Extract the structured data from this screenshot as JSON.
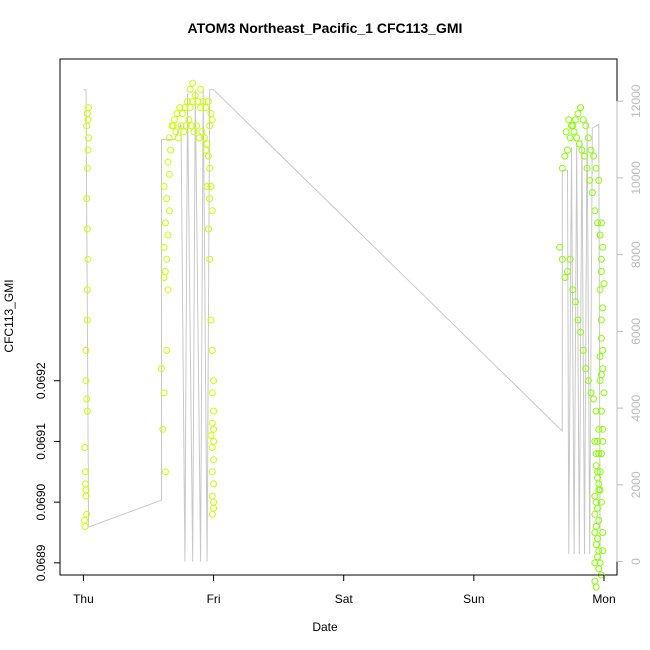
{
  "chart_data": {
    "type": "scatter",
    "title": "ATOM3 Northeast_Pacific_1 CFC113_GMI",
    "xlabel": "Date",
    "ylabel": "CFC113_GMI",
    "x_tick_labels": [
      "Thu",
      "Fri",
      "Sat",
      "Sun",
      "Mon"
    ],
    "x_ticks": [
      0,
      1,
      2,
      3,
      4
    ],
    "xlim": [
      -0.18,
      4.1
    ],
    "ylim": [
      0.06888,
      0.06973
    ],
    "y_ticks": [
      0.0689,
      0.069,
      0.0691,
      0.0692
    ],
    "y_tick_labels": [
      "0.0689",
      "0.0690",
      "0.0691",
      "0.0692"
    ],
    "y2_ticks": [
      0,
      2000,
      4000,
      6000,
      8000,
      10000,
      12000
    ],
    "y2_tick_labels": [
      "0",
      "2000",
      "4000",
      "6000",
      "8000",
      "10000",
      "12000"
    ],
    "y2lim": [
      -350,
      13100
    ],
    "grid": false,
    "legend": "none",
    "colors": {
      "points_early": "#ccff00",
      "points_late": "#88ff00",
      "altitude_line": "#c8c8c8",
      "axis": "#000000",
      "secondary_axis": "#bbbbbb"
    },
    "series": [
      {
        "kind": "points",
        "values": [
          [
            0.01,
            0.06909
          ],
          [
            0.015,
            0.06905
          ],
          [
            0.02,
            0.06902
          ],
          [
            0.008,
            0.06897
          ],
          [
            0.012,
            0.06896
          ],
          [
            0.025,
            0.06898
          ],
          [
            0.02,
            0.06901
          ],
          [
            0.015,
            0.06903
          ],
          [
            0.02,
            0.06925
          ],
          [
            0.02,
            0.0692
          ],
          [
            0.025,
            0.06917
          ],
          [
            0.03,
            0.06915
          ],
          [
            0.03,
            0.0693
          ],
          [
            0.03,
            0.06935
          ],
          [
            0.035,
            0.0694
          ],
          [
            0.03,
            0.06945
          ],
          [
            0.025,
            0.0695
          ],
          [
            0.03,
            0.06955
          ],
          [
            0.035,
            0.06958
          ],
          [
            0.04,
            0.0696
          ],
          [
            0.025,
            0.06962
          ],
          [
            0.035,
            0.06963
          ],
          [
            0.03,
            0.06964
          ],
          [
            0.038,
            0.06965
          ],
          [
            0.6,
            0.06922
          ],
          [
            0.62,
            0.06918
          ],
          [
            0.61,
            0.06912
          ],
          [
            0.63,
            0.06905
          ],
          [
            0.64,
            0.06925
          ],
          [
            0.65,
            0.06935
          ],
          [
            0.62,
            0.06937
          ],
          [
            0.63,
            0.06938
          ],
          [
            0.64,
            0.0694
          ],
          [
            0.62,
            0.06942
          ],
          [
            0.65,
            0.06944
          ],
          [
            0.63,
            0.06946
          ],
          [
            0.66,
            0.06948
          ],
          [
            0.64,
            0.0695
          ],
          [
            0.62,
            0.06952
          ],
          [
            0.66,
            0.06954
          ],
          [
            0.65,
            0.06956
          ],
          [
            0.67,
            0.06958
          ],
          [
            0.66,
            0.0696
          ],
          [
            0.68,
            0.06962
          ],
          [
            0.7,
            0.06963
          ],
          [
            0.72,
            0.06964
          ],
          [
            0.74,
            0.06965
          ],
          [
            0.76,
            0.06964
          ],
          [
            0.78,
            0.06965
          ],
          [
            0.8,
            0.06966
          ],
          [
            0.82,
            0.06965
          ],
          [
            0.84,
            0.06966
          ],
          [
            0.86,
            0.06967
          ],
          [
            0.88,
            0.06966
          ],
          [
            0.9,
            0.06965
          ],
          [
            0.92,
            0.06966
          ],
          [
            0.94,
            0.06965
          ],
          [
            0.96,
            0.06966
          ],
          [
            0.98,
            0.06964
          ],
          [
            0.69,
            0.06962
          ],
          [
            0.71,
            0.06961
          ],
          [
            0.73,
            0.0696
          ],
          [
            0.75,
            0.06962
          ],
          [
            0.77,
            0.06961
          ],
          [
            0.79,
            0.06962
          ],
          [
            0.81,
            0.06963
          ],
          [
            0.83,
            0.06962
          ],
          [
            0.85,
            0.06961
          ],
          [
            0.87,
            0.06962
          ],
          [
            0.89,
            0.0696
          ],
          [
            0.91,
            0.06961
          ],
          [
            0.93,
            0.0696
          ],
          [
            0.95,
            0.06959
          ],
          [
            0.97,
            0.06962
          ],
          [
            0.99,
            0.06963
          ],
          [
            0.82,
            0.06968
          ],
          [
            0.84,
            0.06969
          ],
          [
            0.9,
            0.06968
          ],
          [
            0.97,
            0.06955
          ],
          [
            0.94,
            0.06958
          ],
          [
            0.96,
            0.06957
          ],
          [
            0.98,
            0.06952
          ],
          [
            0.99,
            0.06948
          ],
          [
            0.96,
            0.06945
          ],
          [
            0.97,
            0.0694
          ],
          [
            0.98,
            0.0693
          ],
          [
            0.99,
            0.06925
          ],
          [
            1.0,
            0.0692
          ],
          [
            0.99,
            0.06918
          ],
          [
            1.0,
            0.06915
          ],
          [
            0.99,
            0.06913
          ],
          [
            1.0,
            0.06912
          ],
          [
            0.98,
            0.06911
          ],
          [
            1.0,
            0.0691
          ],
          [
            0.99,
            0.06909
          ],
          [
            1.0,
            0.06907
          ],
          [
            0.99,
            0.06905
          ],
          [
            1.0,
            0.06903
          ],
          [
            0.99,
            0.06901
          ],
          [
            1.0,
            0.069
          ],
          [
            1.0,
            0.06899
          ],
          [
            0.99,
            0.06898
          ],
          [
            0.97,
            0.0695
          ],
          [
            0.95,
            0.06952
          ]
        ]
      },
      {
        "kind": "points",
        "values": [
          [
            3.66,
            0.06942
          ],
          [
            3.68,
            0.0694
          ],
          [
            3.7,
            0.06937
          ],
          [
            3.72,
            0.06938
          ],
          [
            3.74,
            0.0694
          ],
          [
            3.76,
            0.06935
          ],
          [
            3.78,
            0.06933
          ],
          [
            3.8,
            0.0693
          ],
          [
            3.82,
            0.06928
          ],
          [
            3.84,
            0.06925
          ],
          [
            3.86,
            0.06922
          ],
          [
            3.88,
            0.0692
          ],
          [
            3.9,
            0.06918
          ],
          [
            3.92,
            0.06917
          ],
          [
            3.94,
            0.06915
          ],
          [
            3.96,
            0.06912
          ],
          [
            3.93,
            0.0691
          ],
          [
            3.94,
            0.06908
          ],
          [
            3.95,
            0.06905
          ],
          [
            3.96,
            0.06903
          ],
          [
            3.93,
            0.06901
          ],
          [
            3.94,
            0.069
          ],
          [
            3.95,
            0.06899
          ],
          [
            3.96,
            0.06897
          ],
          [
            3.93,
            0.06895
          ],
          [
            3.94,
            0.06893
          ],
          [
            3.95,
            0.06891
          ],
          [
            3.96,
            0.06889
          ],
          [
            3.93,
            0.06887
          ],
          [
            3.94,
            0.06886
          ],
          [
            3.95,
            0.0691
          ],
          [
            3.96,
            0.06908
          ],
          [
            3.94,
            0.06906
          ],
          [
            3.95,
            0.06904
          ],
          [
            3.96,
            0.06902
          ],
          [
            3.93,
            0.06898
          ],
          [
            3.94,
            0.06896
          ],
          [
            3.95,
            0.06894
          ],
          [
            3.96,
            0.06892
          ],
          [
            3.93,
            0.0689
          ],
          [
            3.68,
            0.06955
          ],
          [
            3.7,
            0.06957
          ],
          [
            3.72,
            0.06958
          ],
          [
            3.74,
            0.0696
          ],
          [
            3.76,
            0.06962
          ],
          [
            3.78,
            0.06963
          ],
          [
            3.8,
            0.06964
          ],
          [
            3.82,
            0.06965
          ],
          [
            3.84,
            0.06963
          ],
          [
            3.86,
            0.06962
          ],
          [
            3.88,
            0.0696
          ],
          [
            3.9,
            0.06958
          ],
          [
            3.92,
            0.06957
          ],
          [
            3.94,
            0.06955
          ],
          [
            3.96,
            0.06953
          ],
          [
            3.71,
            0.06961
          ],
          [
            3.73,
            0.06963
          ],
          [
            3.75,
            0.06962
          ],
          [
            3.77,
            0.06961
          ],
          [
            3.79,
            0.0696
          ],
          [
            3.81,
            0.06959
          ],
          [
            3.83,
            0.06958
          ],
          [
            3.85,
            0.06957
          ],
          [
            3.87,
            0.06955
          ],
          [
            3.89,
            0.06953
          ],
          [
            3.91,
            0.06951
          ],
          [
            3.93,
            0.06948
          ],
          [
            3.95,
            0.06946
          ],
          [
            3.97,
            0.06944
          ],
          [
            3.98,
            0.0694
          ],
          [
            3.97,
            0.06935
          ],
          [
            3.98,
            0.0693
          ],
          [
            3.99,
            0.06925
          ],
          [
            3.97,
            0.0692
          ],
          [
            3.98,
            0.06915
          ],
          [
            3.99,
            0.0691
          ],
          [
            3.97,
            0.06905
          ],
          [
            3.98,
            0.069
          ],
          [
            3.99,
            0.06895
          ],
          [
            3.97,
            0.0689
          ],
          [
            3.98,
            0.06888
          ],
          [
            3.99,
            0.06892
          ],
          [
            3.97,
            0.06902
          ],
          [
            3.98,
            0.06908
          ],
          [
            3.99,
            0.06912
          ],
          [
            4.0,
            0.06918
          ],
          [
            3.98,
            0.06921
          ],
          [
            3.99,
            0.06922
          ],
          [
            3.97,
            0.06924
          ],
          [
            3.98,
            0.06927
          ],
          [
            3.99,
            0.06932
          ],
          [
            4.0,
            0.06936
          ],
          [
            3.98,
            0.06938
          ],
          [
            3.99,
            0.06942
          ],
          [
            3.97,
            0.06944
          ],
          [
            3.98,
            0.06946
          ]
        ]
      },
      {
        "kind": "line",
        "axis": "y2",
        "values": [
          [
            0.0,
            12300
          ],
          [
            0.02,
            12300
          ],
          [
            0.04,
            900
          ],
          [
            0.6,
            1600
          ],
          [
            0.6,
            11000
          ],
          [
            0.7,
            11000
          ],
          [
            0.75,
            11400
          ],
          [
            0.78,
            0
          ],
          [
            0.8,
            12200
          ],
          [
            0.84,
            0
          ],
          [
            0.86,
            12300
          ],
          [
            0.9,
            0
          ],
          [
            0.92,
            12300
          ],
          [
            0.95,
            0
          ],
          [
            0.97,
            12300
          ],
          [
            1.0,
            12300
          ],
          [
            3.68,
            3400
          ],
          [
            3.68,
            10200
          ],
          [
            3.72,
            10200
          ],
          [
            3.73,
            200
          ],
          [
            3.75,
            10800
          ],
          [
            3.77,
            200
          ],
          [
            3.79,
            10900
          ],
          [
            3.81,
            200
          ],
          [
            3.83,
            11000
          ],
          [
            3.85,
            200
          ],
          [
            3.87,
            11500
          ],
          [
            3.89,
            200
          ],
          [
            3.91,
            11300
          ],
          [
            3.96,
            11400
          ],
          [
            3.97,
            0
          ]
        ]
      }
    ]
  }
}
